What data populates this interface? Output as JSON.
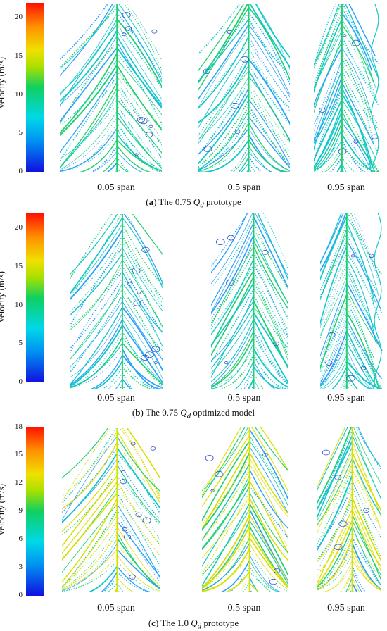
{
  "colorbar_label": "Velocity (m/s)",
  "panels": [
    {
      "ticks": [
        "0",
        "5",
        "10",
        "15",
        "20"
      ],
      "span_labels": [
        "0.05 span",
        "0.5 span",
        "0.95 span"
      ],
      "caption_letter": "a",
      "caption_pre": "The 0.75",
      "caption_q": "Q",
      "caption_sub": "d",
      "caption_post": "prototype"
    },
    {
      "ticks": [
        "0",
        "5",
        "10",
        "15",
        "20"
      ],
      "span_labels": [
        "0.05 span",
        "0.5 span",
        "0.95 span"
      ],
      "caption_letter": "b",
      "caption_pre": "The 0.75",
      "caption_q": "Q",
      "caption_sub": "d",
      "caption_post": "optimized model"
    },
    {
      "ticks": [
        "0",
        "3",
        "6",
        "9",
        "12",
        "15",
        "18"
      ],
      "span_labels": [
        "0.05 span",
        "0.5 span",
        "0.95 span"
      ],
      "caption_letter": "c",
      "caption_pre": "The 1.0",
      "caption_q": "Q",
      "caption_sub": "d",
      "caption_post": "prototype"
    }
  ],
  "colors": {
    "line_a": "#10c8c8",
    "line_b": "#20d070",
    "line_c": "#2aa0ff",
    "line_d": "#d8e000",
    "vortex": "#3050d0"
  }
}
